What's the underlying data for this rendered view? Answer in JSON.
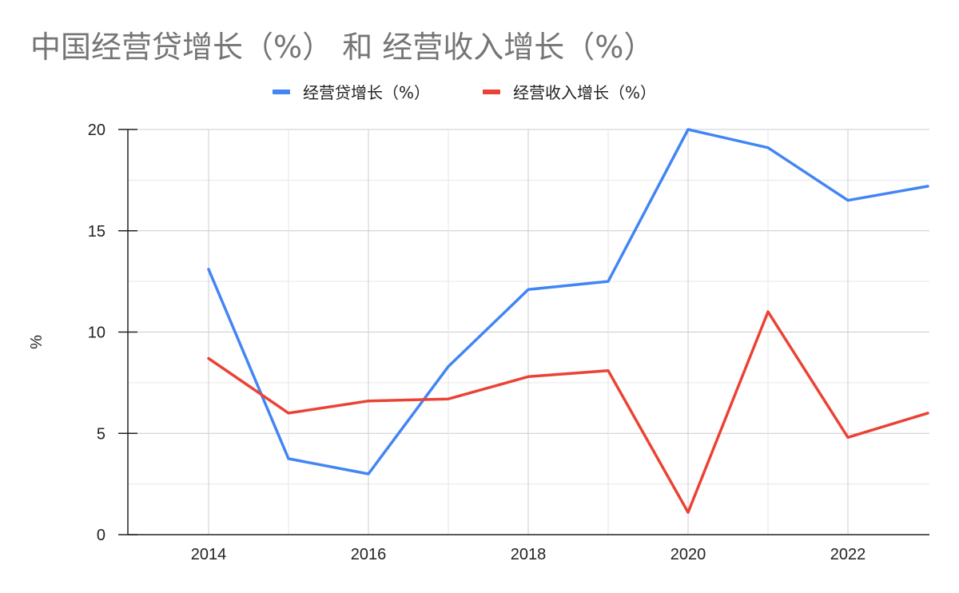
{
  "chart_data": {
    "type": "line",
    "title": "中国经营贷增长（%） 和 经营收入增长（%）",
    "ylabel": "%",
    "xlabel": "",
    "x": [
      2014,
      2015,
      2016,
      2017,
      2018,
      2019,
      2020,
      2021,
      2022,
      2023
    ],
    "xticks": [
      "2014",
      "2016",
      "2018",
      "2020",
      "2022"
    ],
    "yticks": [
      "0",
      "5",
      "10",
      "15",
      "20"
    ],
    "ylim": [
      0,
      20
    ],
    "grid": true,
    "legend_position": "top",
    "series": [
      {
        "name": "经营贷增长（%）",
        "color": "#4285f4",
        "values": [
          13.1,
          3.75,
          3.0,
          8.3,
          12.1,
          12.5,
          20.0,
          19.1,
          16.5,
          17.2
        ]
      },
      {
        "name": "经营收入增长（%）",
        "color": "#ea4335",
        "values": [
          8.7,
          6.0,
          6.6,
          6.7,
          7.8,
          8.1,
          1.1,
          11.0,
          4.8,
          6.0
        ]
      }
    ]
  }
}
